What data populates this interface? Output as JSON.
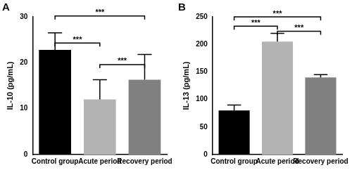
{
  "chart_data": [
    {
      "type": "bar",
      "title": "A",
      "y_label": "IL-10 (pg/mL)",
      "categories": [
        "Control group",
        "Acute period",
        "Recovery period"
      ],
      "values": [
        22.8,
        12.0,
        16.3
      ],
      "errors": [
        3.7,
        4.3,
        5.5
      ],
      "colors": [
        "#000000",
        "#b3b3b3",
        "#808080"
      ],
      "ylim": [
        0,
        30
      ],
      "yticks": [
        0,
        10,
        20,
        30
      ],
      "grid": false,
      "annotations": [
        {
          "from": "Control group",
          "to": "Acute period",
          "y": 24.3,
          "text": "***"
        },
        {
          "from": "Control group",
          "to": "Recovery period",
          "y": 30.2,
          "text": "***"
        },
        {
          "from": "Acute period",
          "to": "Recovery period",
          "y": 19.6,
          "text": "***"
        }
      ]
    },
    {
      "type": "bar",
      "title": "B",
      "y_label": "IL-13 (pg/mL)",
      "categories": [
        "Control group",
        "Acute period",
        "Recovery period"
      ],
      "values": [
        80,
        205,
        140
      ],
      "errors": [
        10,
        15,
        5
      ],
      "colors": [
        "#000000",
        "#b3b3b3",
        "#808080"
      ],
      "ylim": [
        0,
        250
      ],
      "yticks": [
        0,
        50,
        100,
        150,
        200,
        250
      ],
      "grid": false,
      "annotations": [
        {
          "from": "Control group",
          "to": "Acute period",
          "y": 233,
          "text": "***"
        },
        {
          "from": "Control group",
          "to": "Recovery period",
          "y": 250,
          "text": "***"
        },
        {
          "from": "Acute period",
          "to": "Recovery period",
          "y": 224,
          "text": "***"
        }
      ]
    }
  ]
}
